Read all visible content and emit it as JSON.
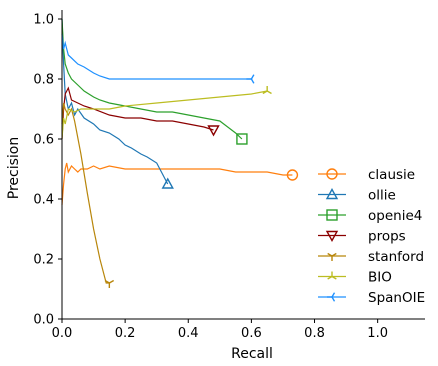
{
  "chart_data": {
    "type": "line",
    "xlabel": "Recall",
    "ylabel": "Precision",
    "xlim": [
      0,
      1.15
    ],
    "ylim": [
      0,
      1.03
    ],
    "xticks": [
      "0.0",
      "0.2",
      "0.4",
      "0.6",
      "0.8",
      "1.0"
    ],
    "yticks": [
      "0.0",
      "0.2",
      "0.4",
      "0.6",
      "0.8",
      "1.0"
    ],
    "grid": false,
    "legend_position": "center-right",
    "series": [
      {
        "name": "clausie",
        "color": "#ff7f0e",
        "marker": "circle",
        "x": [
          0,
          0.005,
          0.01,
          0.015,
          0.02,
          0.03,
          0.04,
          0.05,
          0.06,
          0.08,
          0.1,
          0.12,
          0.15,
          0.2,
          0.25,
          0.3,
          0.35,
          0.4,
          0.45,
          0.5,
          0.55,
          0.6,
          0.65,
          0.7,
          0.73
        ],
        "y": [
          0.38,
          0.45,
          0.5,
          0.52,
          0.49,
          0.51,
          0.5,
          0.49,
          0.5,
          0.5,
          0.51,
          0.5,
          0.51,
          0.5,
          0.5,
          0.5,
          0.5,
          0.5,
          0.5,
          0.5,
          0.49,
          0.49,
          0.49,
          0.48,
          0.48
        ]
      },
      {
        "name": "ollie",
        "color": "#1f77b4",
        "marker": "triangle-up",
        "x": [
          0,
          0.005,
          0.01,
          0.02,
          0.03,
          0.04,
          0.05,
          0.07,
          0.1,
          0.12,
          0.15,
          0.18,
          0.2,
          0.22,
          0.25,
          0.27,
          0.3,
          0.32,
          0.335
        ],
        "y": [
          1.0,
          0.85,
          0.75,
          0.7,
          0.72,
          0.68,
          0.7,
          0.67,
          0.65,
          0.63,
          0.62,
          0.6,
          0.58,
          0.57,
          0.55,
          0.54,
          0.52,
          0.48,
          0.45
        ]
      },
      {
        "name": "openie4",
        "color": "#2ca02c",
        "marker": "square",
        "x": [
          0,
          0.005,
          0.01,
          0.02,
          0.03,
          0.05,
          0.07,
          0.1,
          0.12,
          0.15,
          0.2,
          0.25,
          0.3,
          0.35,
          0.4,
          0.45,
          0.5,
          0.55,
          0.57
        ],
        "y": [
          1.0,
          0.9,
          0.85,
          0.82,
          0.8,
          0.78,
          0.76,
          0.74,
          0.73,
          0.72,
          0.71,
          0.7,
          0.69,
          0.69,
          0.68,
          0.67,
          0.66,
          0.62,
          0.6
        ]
      },
      {
        "name": "props",
        "color": "#8b0000",
        "marker": "triangle-down",
        "x": [
          0,
          0.005,
          0.01,
          0.02,
          0.03,
          0.05,
          0.07,
          0.1,
          0.15,
          0.2,
          0.25,
          0.3,
          0.35,
          0.4,
          0.45,
          0.48
        ],
        "y": [
          0.6,
          0.7,
          0.75,
          0.77,
          0.73,
          0.72,
          0.71,
          0.7,
          0.68,
          0.67,
          0.67,
          0.66,
          0.66,
          0.65,
          0.64,
          0.63
        ]
      },
      {
        "name": "stanford",
        "color": "#b8860b",
        "marker": "tri-down",
        "x": [
          0,
          0.005,
          0.01,
          0.02,
          0.03,
          0.04,
          0.06,
          0.08,
          0.1,
          0.12,
          0.14,
          0.15
        ],
        "y": [
          0.65,
          0.72,
          0.7,
          0.68,
          0.7,
          0.66,
          0.55,
          0.42,
          0.3,
          0.2,
          0.12,
          0.12
        ]
      },
      {
        "name": "BIO",
        "color": "#bcbd22",
        "marker": "tri-up",
        "x": [
          0,
          0.005,
          0.01,
          0.02,
          0.04,
          0.06,
          0.08,
          0.1,
          0.15,
          0.2,
          0.3,
          0.4,
          0.5,
          0.6,
          0.65
        ],
        "y": [
          0.6,
          0.67,
          0.65,
          0.7,
          0.69,
          0.7,
          0.7,
          0.7,
          0.7,
          0.71,
          0.72,
          0.73,
          0.74,
          0.75,
          0.76
        ]
      },
      {
        "name": "SpanOIE",
        "color": "#1e90ff",
        "marker": "tri-left",
        "x": [
          0,
          0.005,
          0.01,
          0.02,
          0.03,
          0.05,
          0.07,
          0.1,
          0.12,
          0.15,
          0.2,
          0.25,
          0.3,
          0.35,
          0.4,
          0.45,
          0.5,
          0.55,
          0.6
        ],
        "y": [
          0.95,
          0.9,
          0.92,
          0.88,
          0.87,
          0.85,
          0.84,
          0.82,
          0.81,
          0.8,
          0.8,
          0.8,
          0.8,
          0.8,
          0.8,
          0.8,
          0.8,
          0.8,
          0.8
        ]
      }
    ]
  }
}
